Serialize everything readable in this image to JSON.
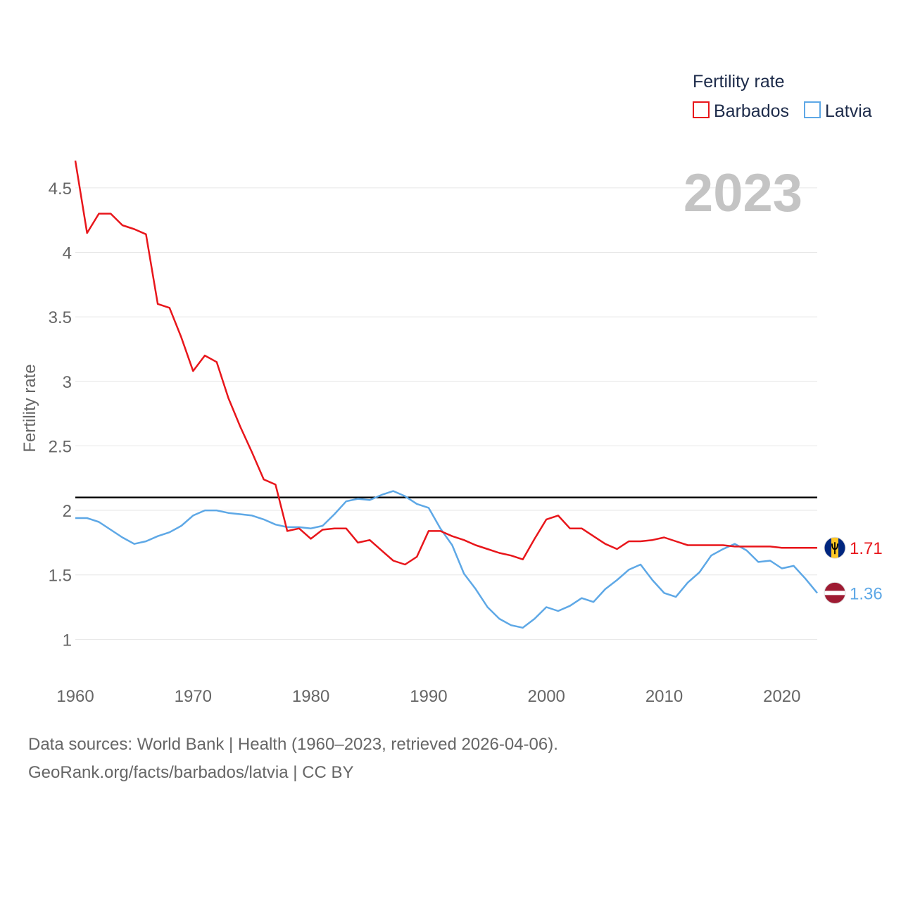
{
  "colors": {
    "barbados": "#e8161b",
    "latvia": "#5ea8e6",
    "grid": "#e6e6e6",
    "reference": "#000000"
  },
  "legend": {
    "title": "Fertility rate",
    "items": [
      {
        "name": "Barbados",
        "color": "#e8161b"
      },
      {
        "name": "Latvia",
        "color": "#5ea8e6"
      }
    ]
  },
  "year_label": "2023",
  "end_labels": {
    "barbados": "1.71",
    "latvia": "1.36"
  },
  "flags": {
    "barbados": "barbados-flag-icon",
    "latvia": "latvia-flag-icon"
  },
  "source": {
    "line1": "Data sources: World Bank | Health (1960–2023, retrieved 2026-04-06).",
    "line2": "GeoRank.org/facts/barbados/latvia | CC BY"
  },
  "chart_data": {
    "type": "line",
    "title": "",
    "xlabel": "",
    "ylabel": "Fertility rate",
    "xlim": [
      1960,
      2023
    ],
    "ylim": [
      0.8,
      4.75
    ],
    "grid": true,
    "legend_position": "top-right",
    "x_ticks": [
      1960,
      1970,
      1980,
      1990,
      2000,
      2010,
      2020
    ],
    "x_tick_labels": [
      "1960",
      "1970",
      "1980",
      "1990",
      "2000",
      "2010",
      "2020"
    ],
    "y_ticks": [
      1,
      1.5,
      2,
      2.5,
      3,
      3.5,
      4,
      4.5
    ],
    "y_tick_labels": [
      "1",
      "1.5",
      "2",
      "2.5",
      "3",
      "3.5",
      "4",
      "4.5"
    ],
    "reference_line": 2.1,
    "x": [
      1960,
      1961,
      1962,
      1963,
      1964,
      1965,
      1966,
      1967,
      1968,
      1969,
      1970,
      1971,
      1972,
      1973,
      1974,
      1975,
      1976,
      1977,
      1978,
      1979,
      1980,
      1981,
      1982,
      1983,
      1984,
      1985,
      1986,
      1987,
      1988,
      1989,
      1990,
      1991,
      1992,
      1993,
      1994,
      1995,
      1996,
      1997,
      1998,
      1999,
      2000,
      2001,
      2002,
      2003,
      2004,
      2005,
      2006,
      2007,
      2008,
      2009,
      2010,
      2011,
      2012,
      2013,
      2014,
      2015,
      2016,
      2017,
      2018,
      2019,
      2020,
      2021,
      2022,
      2023
    ],
    "series": [
      {
        "name": "Barbados",
        "values": [
          4.71,
          4.15,
          4.3,
          4.3,
          4.21,
          4.18,
          4.14,
          3.6,
          3.57,
          3.34,
          3.08,
          3.2,
          3.15,
          2.87,
          2.65,
          2.45,
          2.24,
          2.2,
          1.84,
          1.86,
          1.78,
          1.85,
          1.86,
          1.86,
          1.75,
          1.77,
          1.69,
          1.61,
          1.58,
          1.64,
          1.84,
          1.84,
          1.8,
          1.77,
          1.73,
          1.7,
          1.67,
          1.65,
          1.62,
          1.78,
          1.93,
          1.96,
          1.86,
          1.86,
          1.8,
          1.74,
          1.7,
          1.76,
          1.76,
          1.77,
          1.79,
          1.76,
          1.73,
          1.73,
          1.73,
          1.73,
          1.72,
          1.72,
          1.72,
          1.72,
          1.71,
          1.71,
          1.71,
          1.71
        ]
      },
      {
        "name": "Latvia",
        "values": [
          1.94,
          1.94,
          1.91,
          1.85,
          1.79,
          1.74,
          1.76,
          1.8,
          1.83,
          1.88,
          1.96,
          2.0,
          2.0,
          1.98,
          1.97,
          1.96,
          1.93,
          1.89,
          1.87,
          1.87,
          1.86,
          1.88,
          1.97,
          2.07,
          2.09,
          2.08,
          2.12,
          2.15,
          2.11,
          2.05,
          2.02,
          1.86,
          1.73,
          1.51,
          1.39,
          1.25,
          1.16,
          1.11,
          1.09,
          1.16,
          1.25,
          1.22,
          1.26,
          1.32,
          1.29,
          1.39,
          1.46,
          1.54,
          1.58,
          1.46,
          1.36,
          1.33,
          1.44,
          1.52,
          1.65,
          1.7,
          1.74,
          1.69,
          1.6,
          1.61,
          1.55,
          1.57,
          1.47,
          1.36
        ]
      }
    ]
  }
}
